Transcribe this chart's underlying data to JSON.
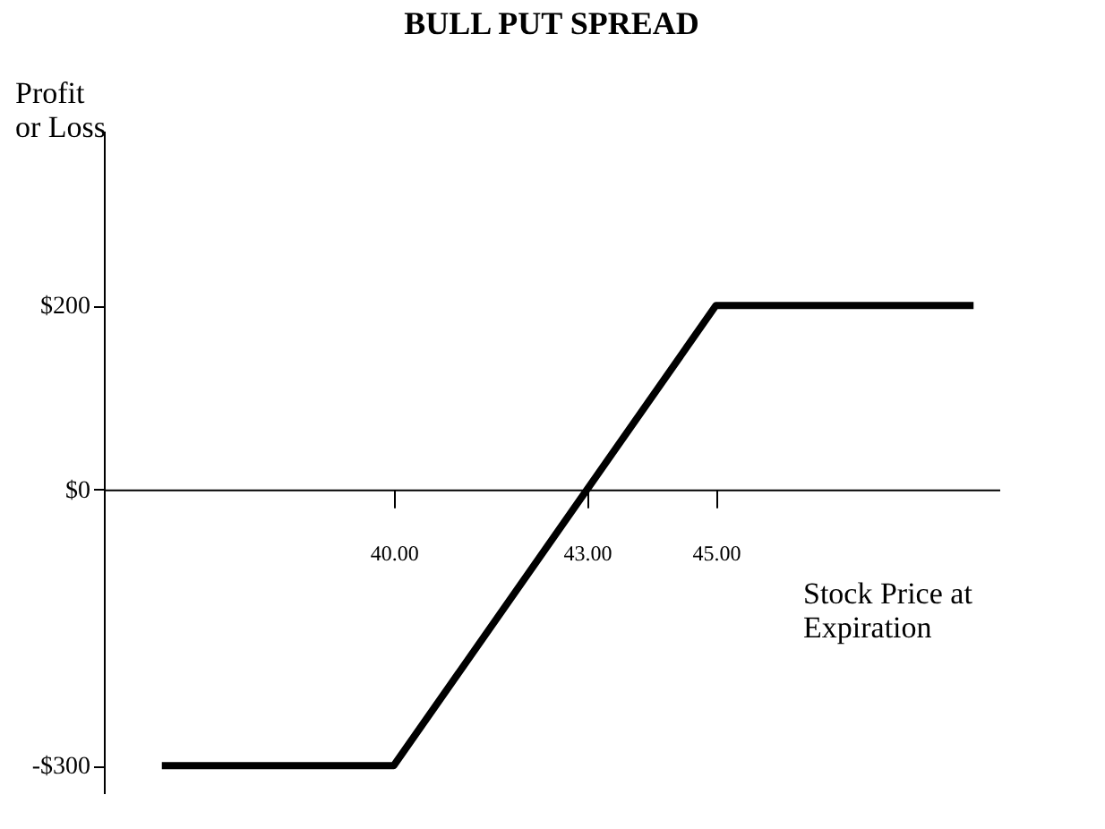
{
  "chart_data": {
    "type": "line",
    "title": "BULL PUT SPREAD",
    "xlabel": "Stock Price at\nExpiration",
    "ylabel": "Profit\nor Loss",
    "x": [
      36.4,
      40,
      45,
      49
    ],
    "series": [
      {
        "color": "#000000",
        "values": [
          -300,
          -300,
          200,
          200
        ]
      }
    ],
    "xlim": [
      35.5,
      49.4
    ],
    "ylim": [
      -330,
      390
    ],
    "xticks": [
      {
        "value": 40,
        "label": "40.00"
      },
      {
        "value": 43,
        "label": "43.00"
      },
      {
        "value": 45,
        "label": "45.00"
      }
    ],
    "yticks": [
      {
        "value": 200,
        "label": "$200"
      },
      {
        "value": 0,
        "label": "$0"
      },
      {
        "value": -300,
        "label": "-$300"
      }
    ],
    "grid": false,
    "marker": "none",
    "line_style": "solid"
  }
}
